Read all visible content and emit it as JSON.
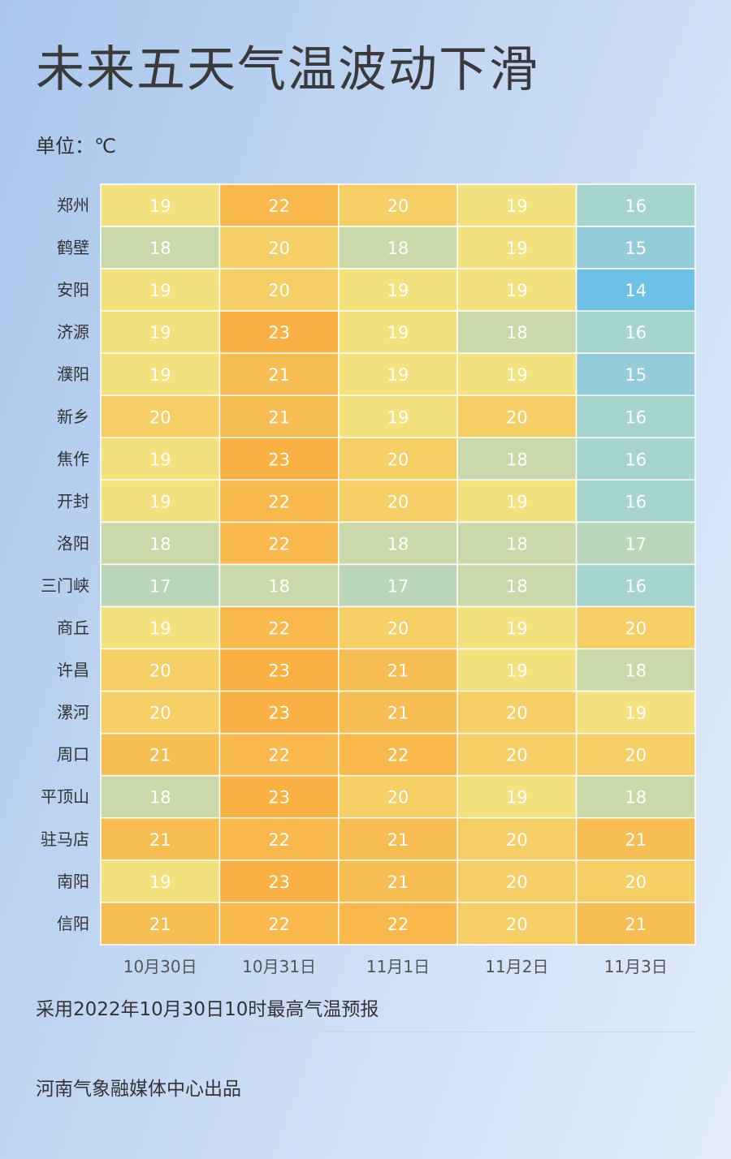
{
  "title": "未来五天气温波动下滑",
  "unit_label": "单位：℃",
  "note": "采用2022年10月30日10时最高气温预报",
  "credit": "河南气象融媒体中心出品",
  "colors": {
    "cold_blue": "#6ec1e6",
    "cool_teal": "#a6d4cf",
    "mild_green": "#c9d9aa",
    "mild_yellow": "#f3e17e",
    "warm_yellow": "#f5cf66",
    "warm_orange": "#f6bd52",
    "hot_orange": "#f9b144"
  },
  "chart_data": {
    "type": "heatmap",
    "title": "未来五天气温波动下滑",
    "unit": "℃",
    "columns": [
      "10月30日",
      "10月31日",
      "11月1日",
      "11月2日",
      "11月3日"
    ],
    "rows": [
      "郑州",
      "鹤壁",
      "安阳",
      "济源",
      "濮阳",
      "新乡",
      "焦作",
      "开封",
      "洛阳",
      "三门峡",
      "商丘",
      "许昌",
      "漯河",
      "周口",
      "平顶山",
      "驻马店",
      "南阳",
      "信阳"
    ],
    "values": [
      [
        19,
        22,
        20,
        19,
        16
      ],
      [
        18,
        20,
        18,
        19,
        15
      ],
      [
        19,
        20,
        19,
        19,
        14
      ],
      [
        19,
        23,
        19,
        18,
        16
      ],
      [
        19,
        21,
        19,
        19,
        15
      ],
      [
        20,
        21,
        19,
        20,
        16
      ],
      [
        19,
        23,
        20,
        18,
        16
      ],
      [
        19,
        22,
        20,
        19,
        16
      ],
      [
        18,
        22,
        18,
        18,
        17
      ],
      [
        17,
        18,
        17,
        18,
        16
      ],
      [
        19,
        22,
        20,
        19,
        20
      ],
      [
        20,
        23,
        21,
        19,
        18
      ],
      [
        20,
        23,
        21,
        20,
        19
      ],
      [
        21,
        22,
        22,
        20,
        20
      ],
      [
        18,
        23,
        20,
        19,
        18
      ],
      [
        21,
        22,
        21,
        20,
        21
      ],
      [
        19,
        23,
        21,
        20,
        20
      ],
      [
        21,
        22,
        22,
        20,
        21
      ]
    ]
  }
}
